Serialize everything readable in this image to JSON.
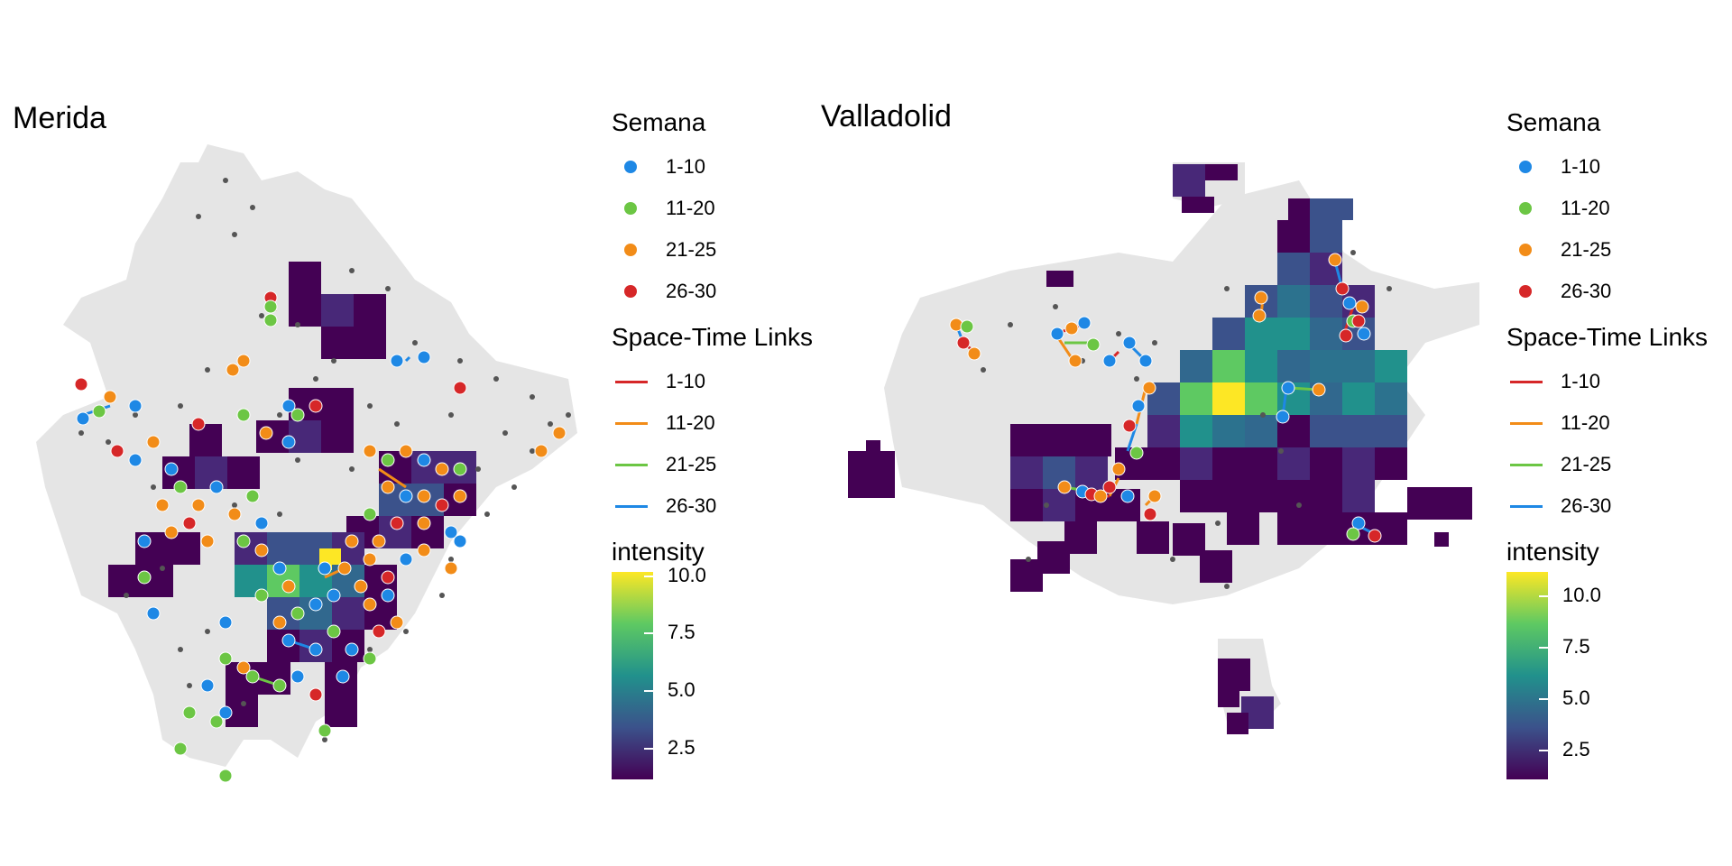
{
  "panels": [
    {
      "title": "Merida",
      "legend": {
        "semana_title": "Semana",
        "semana": [
          {
            "label": "1-10",
            "color": "#1e88e5"
          },
          {
            "label": "11-20",
            "color": "#6cc644"
          },
          {
            "label": "21-25",
            "color": "#f28c18"
          },
          {
            "label": "26-30",
            "color": "#d62728"
          }
        ],
        "links_title": "Space-Time Links",
        "links": [
          {
            "label": "1-10",
            "color": "#d62728"
          },
          {
            "label": "11-20",
            "color": "#f28c18"
          },
          {
            "label": "21-25",
            "color": "#6cc644"
          },
          {
            "label": "26-30",
            "color": "#1e88e5"
          }
        ],
        "intensity_title": "intensity",
        "intensity_ticks": [
          "10.0",
          "7.5",
          "5.0",
          "2.5"
        ],
        "intensity_values": [
          10.0,
          7.5,
          5.0,
          2.5
        ],
        "intensity_range": [
          1,
          10.5
        ]
      }
    },
    {
      "title": "Valladolid",
      "legend": {
        "semana_title": "Semana",
        "semana": [
          {
            "label": "1-10",
            "color": "#1e88e5"
          },
          {
            "label": "11-20",
            "color": "#6cc644"
          },
          {
            "label": "21-25",
            "color": "#f28c18"
          },
          {
            "label": "26-30",
            "color": "#d62728"
          }
        ],
        "links_title": "Space-Time Links",
        "links": [
          {
            "label": "1-10",
            "color": "#d62728"
          },
          {
            "label": "11-20",
            "color": "#f28c18"
          },
          {
            "label": "21-25",
            "color": "#6cc644"
          },
          {
            "label": "26-30",
            "color": "#1e88e5"
          }
        ],
        "intensity_title": "intensity",
        "intensity_ticks": [
          "10.0",
          "7.5",
          "5.0",
          "2.5"
        ],
        "intensity_values": [
          10.0,
          7.5,
          5.0,
          2.5
        ],
        "intensity_range": [
          1,
          11.5
        ]
      }
    }
  ],
  "colors": {
    "land": "#e5e5e5",
    "case_point": "#555555",
    "viridis": [
      "#440154",
      "#3b528b",
      "#21918c",
      "#5ec962",
      "#fde725"
    ]
  }
}
